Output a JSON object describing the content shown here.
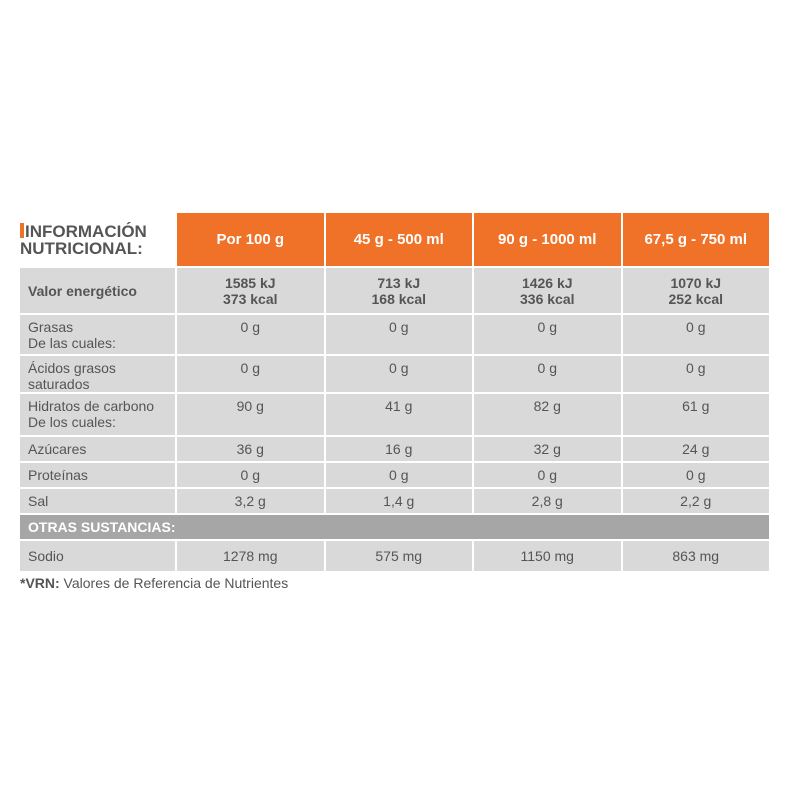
{
  "title_line1": "INFORMACIÓN",
  "title_line2": "NUTRICIONAL:",
  "columns": [
    "Por 100 g",
    "45 g - 500 ml",
    "90 g - 1000 ml",
    "67,5 g - 750 ml"
  ],
  "energy": {
    "label": "Valor energético",
    "kj": [
      "1585 kJ",
      "713 kJ",
      "1426 kJ",
      "1070 kJ"
    ],
    "kcal": [
      "373 kcal",
      "168 kcal",
      "336 kcal",
      "252 kcal"
    ]
  },
  "rows": [
    {
      "label": "Grasas",
      "sub": "De las cuales:",
      "values": [
        "0 g",
        "0 g",
        "0 g",
        "0 g"
      ]
    },
    {
      "label": "Ácidos grasos saturados",
      "values": [
        "0 g",
        "0 g",
        "0 g",
        "0 g"
      ]
    },
    {
      "label": "Hidratos de carbono",
      "sub": "De los cuales:",
      "values": [
        "90 g",
        "41 g",
        "82 g",
        "61 g"
      ]
    },
    {
      "label": "Azúcares",
      "values": [
        "36 g",
        "16 g",
        "32 g",
        "24 g"
      ]
    },
    {
      "label": "Proteínas",
      "values": [
        "0 g",
        "0 g",
        "0 g",
        "0 g"
      ]
    },
    {
      "label": "Sal",
      "values": [
        "3,2 g",
        "1,4 g",
        "2,8 g",
        "2,2 g"
      ]
    }
  ],
  "section": "OTRAS SUSTANCIAS:",
  "sodio": {
    "label": "Sodio",
    "values": [
      "1278 mg",
      "575 mg",
      "1150 mg",
      "863 mg"
    ]
  },
  "footnote": {
    "key": "*VRN:",
    "text": " Valores de Referencia de Nutrientes"
  },
  "colors": {
    "accent": "#f07229",
    "cell": "#d9d9d9",
    "section": "#a6a6a6"
  }
}
